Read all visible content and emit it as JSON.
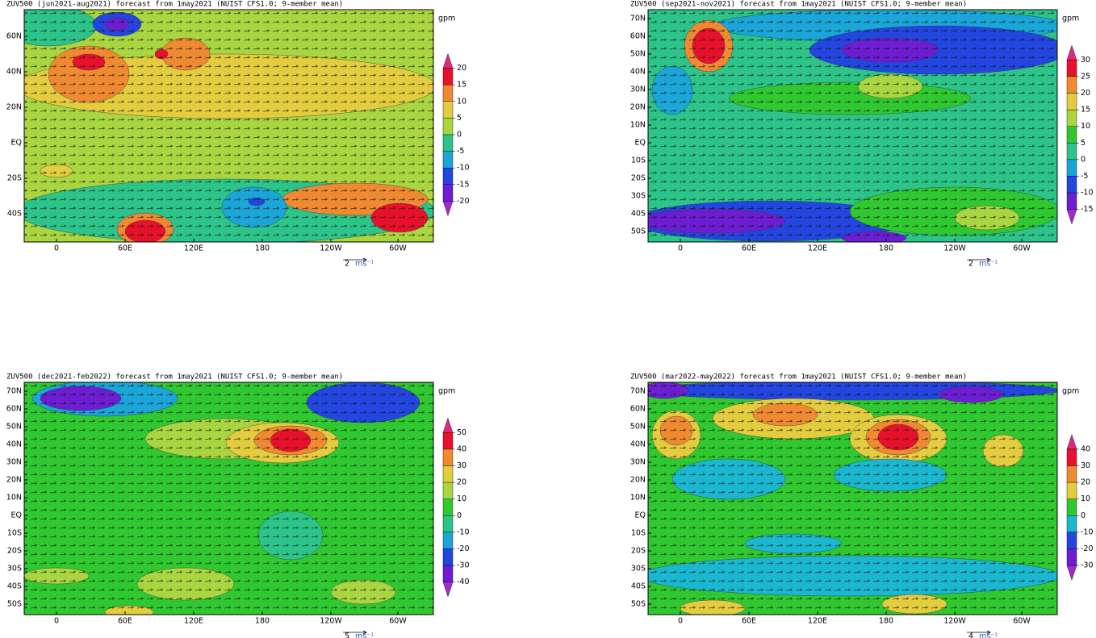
{
  "panels": [
    {
      "title": "ZUV500 (jun2021-aug2021) forecast from 1may2021 (NUIST CFS1.0; 9-member mean)",
      "unit": "gpm",
      "lat_labels": [
        "60N",
        "40N",
        "20N",
        "EQ",
        "20S",
        "40S"
      ],
      "lon_labels": [
        "0",
        "60E",
        "120E",
        "180",
        "120W",
        "60W"
      ],
      "levels": [
        20,
        15,
        10,
        5,
        0,
        -5,
        -10,
        -15,
        -20
      ],
      "colors": [
        "#e0287e",
        "#e8112b",
        "#ef8a32",
        "#e3cd3e",
        "#a9d640",
        "#2cc489",
        "#1aa6d8",
        "#2346e0",
        "#6d1ed2",
        "#a02ad0"
      ],
      "vector_scale": 2,
      "vector_unit": "ms⁻¹"
    },
    {
      "title": "ZUV500 (sep2021-nov2021) forecast from 1may2021 (NUIST CFS1.0; 9-member mean)",
      "unit": "gpm",
      "lat_labels": [
        "70N",
        "60N",
        "50N",
        "40N",
        "30N",
        "20N",
        "10N",
        "EQ",
        "10S",
        "20S",
        "30S",
        "40S",
        "50S"
      ],
      "lon_labels": [
        "0",
        "60E",
        "120E",
        "180",
        "120W",
        "60W"
      ],
      "levels": [
        30,
        25,
        20,
        15,
        10,
        5,
        0,
        -5,
        -10,
        -15
      ],
      "colors": [
        "#e0287e",
        "#e8112b",
        "#ef8a32",
        "#e3cd3e",
        "#a9d640",
        "#30c830",
        "#2cc489",
        "#1aa6d8",
        "#2346e0",
        "#6d1ed2",
        "#a02ad0"
      ],
      "vector_scale": 2,
      "vector_unit": "ms⁻¹"
    },
    {
      "title": "ZUV500 (dec2021-feb2022) forecast from 1may2021 (NUIST CFS1.0; 9-member mean)",
      "unit": "gpm",
      "lat_labels": [
        "70N",
        "60N",
        "50N",
        "40N",
        "30N",
        "20N",
        "10N",
        "EQ",
        "10S",
        "20S",
        "30S",
        "40S",
        "50S"
      ],
      "lon_labels": [
        "0",
        "60E",
        "120E",
        "180",
        "120W",
        "60W"
      ],
      "levels": [
        50,
        40,
        30,
        20,
        10,
        0,
        -10,
        -20,
        -30,
        -40
      ],
      "colors": [
        "#e0287e",
        "#e8112b",
        "#ef8a32",
        "#e3cd3e",
        "#a9d640",
        "#30c830",
        "#2cc489",
        "#1aa6d8",
        "#2346e0",
        "#6d1ed2",
        "#a02ad0"
      ],
      "vector_scale": 5,
      "vector_unit": "ms⁻¹"
    },
    {
      "title": "ZUV500 (mar2022-may2022) forecast from 1may2021 (NUIST CFS1.0; 9-member mean)",
      "unit": "gpm",
      "lat_labels": [
        "70N",
        "60N",
        "50N",
        "40N",
        "30N",
        "20N",
        "10N",
        "EQ",
        "10S",
        "20S",
        "30S",
        "40S",
        "50S"
      ],
      "lon_labels": [
        "0",
        "60E",
        "120E",
        "180",
        "120W",
        "60W"
      ],
      "levels": [
        40,
        30,
        20,
        10,
        0,
        -10,
        -20,
        -30
      ],
      "colors": [
        "#e0287e",
        "#e8112b",
        "#ef8a32",
        "#e3cd3e",
        "#30c830",
        "#1ab8d0",
        "#2346e0",
        "#6d1ed2",
        "#a02ad0"
      ],
      "vector_scale": 4,
      "vector_unit": "ms⁻¹"
    }
  ]
}
